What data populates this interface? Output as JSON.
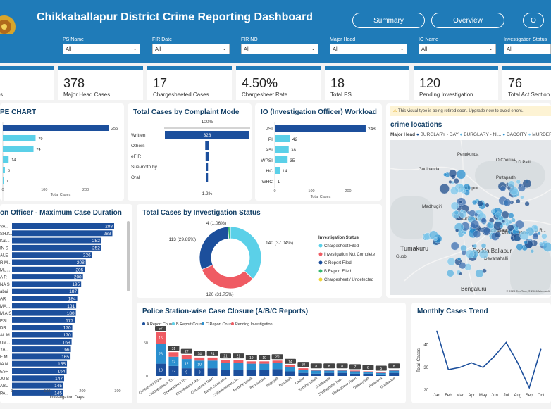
{
  "header": {
    "title": "Chikkaballapur District Crime Reporting Dashboard",
    "buttons": [
      "Summary",
      "Overview",
      "O"
    ]
  },
  "filters": [
    {
      "label": "PS Name",
      "value": "All"
    },
    {
      "label": "FIR Date",
      "value": "All"
    },
    {
      "label": "FIR NO",
      "value": "All"
    },
    {
      "label": "Major Head",
      "value": "All"
    },
    {
      "label": "IO Name",
      "value": "All"
    },
    {
      "label": "Investigation Status",
      "value": "All"
    }
  ],
  "kpis": [
    {
      "value": "",
      "caption": "s"
    },
    {
      "value": "378",
      "caption": "Major Head Cases"
    },
    {
      "value": "17",
      "caption": "Chargesheeted Cases"
    },
    {
      "value": "4.50%",
      "caption": "Chargesheet Rate"
    },
    {
      "value": "18",
      "caption": "Total PS"
    },
    {
      "value": "120",
      "caption": "Pending Investigation"
    },
    {
      "value": "76",
      "caption": "Total Act Section"
    }
  ],
  "panels": {
    "type_chart": {
      "title": "PE CHART",
      "xlabel": "Total Cases",
      "ticks": [
        "0",
        "100",
        "200"
      ],
      "chart_data": {
        "type": "bar",
        "values": [
          255,
          79,
          74,
          14,
          5,
          1
        ]
      }
    },
    "complaint_mode": {
      "title": "Total Cases by Complaint Mode",
      "top_label": "100%",
      "bottom_label": "1.2%",
      "chart_data": {
        "type": "bar",
        "categories": [
          "Written",
          "Others",
          "eFIR",
          "Sue-moto by...",
          "Oral"
        ],
        "values": [
          328,
          15,
          12,
          6,
          4
        ]
      }
    },
    "io_workload": {
      "title": "IO (Investigation Officer) Workload",
      "xlabel": "Total Cases",
      "ticks": [
        "0",
        "100",
        "200"
      ],
      "chart_data": {
        "type": "bar",
        "categories": [
          "PSI",
          "PI",
          "ASI",
          "WPSI",
          "HC",
          "WHC"
        ],
        "values": [
          248,
          42,
          38,
          35,
          14,
          1
        ]
      }
    },
    "map": {
      "warning": "This visual type is being retired soon. Upgrade now to avoid errors.",
      "title": "crime locations",
      "legend_title": "Major Head",
      "legend": [
        {
          "name": "BURGLARY - DAY",
          "color": "#1f4e8c"
        },
        {
          "name": "BURGLARY - NI...",
          "color": "#5bb3e0"
        },
        {
          "name": "DACOITY",
          "color": "#2a8fcf"
        },
        {
          "name": "MURDER",
          "color": "#7fc8ec"
        },
        {
          "name": "R",
          "color": "#3c6fb0"
        }
      ],
      "places": [
        "Penukonda",
        "O Cheruvu",
        "Gudibanda",
        "O D Palli",
        "Hindupur",
        "Puttaparthi",
        "Madhugiri",
        "Gauribidanur",
        "Chintamani",
        "Chikkaballapura",
        "Tumakuru",
        "Dodda Ballapur",
        "Devanahalli",
        "Gubbi",
        "Bengaluru",
        "O R..."
      ],
      "copyright": "© 2026 TomTom, © 2026 Microsoft"
    },
    "io_duration": {
      "title": "on Officer - Maximum Case Duration",
      "xlabel": "Investigation Days",
      "ticks": [
        "0",
        "100",
        "200",
        "300"
      ],
      "chart_data": {
        "type": "bar",
        "categories": [
          "VA...",
          "SH.K...",
          "Kal...",
          "IN S",
          "ALE",
          "R M...",
          "MU...",
          "A R",
          "NA S",
          "abai",
          "AR",
          "MA...",
          "M.A.S",
          "PSI",
          "DR",
          "AL M",
          "UM...",
          "YA...",
          "E M",
          "IA N",
          "ESH",
          "JU B",
          "ABU",
          "PA..."
        ],
        "values": [
          288,
          283,
          252,
          252,
          226,
          208,
          205,
          200,
          195,
          187,
          184,
          181,
          180,
          177,
          170,
          170,
          168,
          166,
          165,
          155,
          154,
          147,
          145,
          145
        ]
      }
    },
    "inv_status": {
      "title": "Total Cases by Investigation Status",
      "legend_title": "Investigation Status",
      "chart_data": {
        "type": "pie",
        "categories": [
          "Chargesheet Filed",
          "Investigation Not Complete",
          "C Report Filed",
          "B Report Filed",
          "Chargesheet / Undetected"
        ],
        "values": [
          140,
          120,
          113,
          4,
          1
        ],
        "labels": [
          "140 (37.04%)",
          "120 (31.75%)",
          "113 (29.89%)",
          "4 (1.06%)",
          ""
        ],
        "colors": [
          "#5bd0e8",
          "#ef5b63",
          "#1c4f9c",
          "#33b86d",
          "#f0d53c"
        ]
      }
    },
    "ps_closure": {
      "title": "Police Station-wise Case Closure (A/B/C Reports)",
      "legend": [
        {
          "name": "A Report Count",
          "color": "#1c4f9c"
        },
        {
          "name": "B Report Count",
          "color": "#5bd0e8"
        },
        {
          "name": "C Report Count",
          "color": "#2a8fcf"
        },
        {
          "name": "Pending Investigation",
          "color": "#ef5b63"
        }
      ],
      "y_ticks": [
        "50",
        "0"
      ],
      "chart_data": {
        "type": "bar",
        "categories": [
          "Chintamani Rural",
          "Chikkaballapur To...",
          "Gowribidanur To...",
          "Gowribidanur Ru...",
          "Chintamani Town",
          "Nandi Giridhama",
          "Chikkaballapura R...",
          "Manchenahalli",
          "Peresandra",
          "Bagepalli",
          "Batlahalli",
          "Chelur",
          "Kencharlahalli",
          "Gudibanda",
          "Shidlaghatta Tow...",
          "Shidlaghatta Rural",
          "Dibburahalli",
          "Patapalya",
          "Gudibande"
        ],
        "totals": [
          57,
          31,
          27,
          24,
          24,
          21,
          21,
          19,
          19,
          20,
          14,
          10,
          8,
          8,
          8,
          7,
          6,
          5,
          8
        ],
        "pending": [
          15,
          6,
          5,
          4,
          4,
          4,
          4,
          3,
          3,
          3,
          2,
          2,
          1,
          1,
          1,
          1,
          1,
          1,
          1
        ],
        "b_report": [
          26,
          12,
          12,
          10,
          10,
          9,
          9,
          8,
          8,
          8,
          6,
          4,
          4,
          3,
          3,
          3,
          2,
          2,
          3
        ],
        "series_labels": [
          [
            "13",
            "26",
            "15"
          ],
          [
            "12",
            "12",
            "6"
          ],
          [
            "9",
            "12",
            "5"
          ],
          [
            "9",
            "10",
            "4"
          ],
          [
            "9",
            "10",
            "4"
          ],
          [
            "8",
            "9",
            "4"
          ],
          [
            "8",
            "9",
            "4"
          ],
          [
            "7",
            "8",
            "3"
          ],
          [
            "7",
            "8",
            "3"
          ],
          [
            "8",
            "8",
            "3"
          ],
          [
            "6",
            "6",
            "2"
          ],
          [
            "4",
            "4",
            "2"
          ],
          [
            "3",
            "4",
            "1"
          ],
          [
            "3",
            "3",
            "1"
          ],
          [
            "3",
            "3",
            "1"
          ],
          [
            "2",
            "3",
            "1"
          ],
          [
            "2",
            "2",
            "1"
          ],
          [
            "2",
            "2",
            "1"
          ],
          [
            "4",
            "3",
            "1"
          ]
        ]
      }
    },
    "monthly": {
      "title": "Monthly Cases Trend",
      "ylabel": "Total Cases",
      "y_ticks": [
        "40",
        "30",
        "20"
      ],
      "chart_data": {
        "type": "line",
        "categories": [
          "Jan",
          "Feb",
          "Mar",
          "Apr",
          "May",
          "Jun",
          "Jul",
          "Aug",
          "Sep",
          "Oct"
        ],
        "values": [
          46,
          29,
          30,
          32,
          30,
          35,
          41,
          32,
          21,
          38
        ],
        "ylim": [
          20,
          48
        ]
      }
    }
  }
}
